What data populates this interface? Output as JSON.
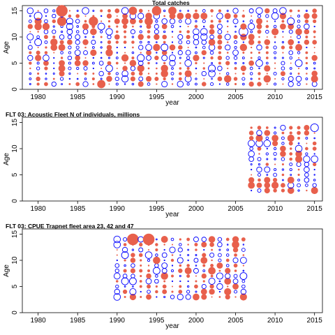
{
  "chart_data": [
    {
      "type": "scatter",
      "title": "Total catches",
      "xlabel": "year",
      "ylabel": "Age",
      "xlim": [
        1978,
        2016
      ],
      "ylim": [
        0,
        16
      ],
      "xticks": [
        1980,
        1985,
        1990,
        1995,
        2000,
        2005,
        2010,
        2015
      ],
      "yticks": [
        0,
        5,
        10,
        15
      ],
      "encoding": "bubble residuals: positive = filled red-orange, negative = open blue",
      "colors": {
        "positive": "#e8604c",
        "negative": "#0000ff"
      },
      "x_values": [
        1979,
        1980,
        1981,
        1982,
        1983,
        1984,
        1985,
        1986,
        1987,
        1988,
        1989,
        1990,
        1991,
        1992,
        1993,
        1994,
        1995,
        1996,
        1997,
        1998,
        1999,
        2000,
        2001,
        2002,
        2003,
        2004,
        2005,
        2006,
        2007,
        2008,
        2009,
        2010,
        2011,
        2012,
        2013,
        2014,
        2015
      ],
      "ages": [
        1,
        15
      ],
      "highlights": [
        {
          "x": 1983,
          "y": 15,
          "sign": "pos",
          "size": 1.0
        },
        {
          "x": 1983,
          "y": 13,
          "sign": "pos",
          "size": 0.8
        },
        {
          "x": 1980,
          "y": 14,
          "sign": "neg",
          "size": 0.7
        },
        {
          "x": 1986,
          "y": 15,
          "sign": "neg",
          "size": 0.6
        },
        {
          "x": 1987,
          "y": 13,
          "sign": "pos",
          "size": 0.8
        },
        {
          "x": 1992,
          "y": 15,
          "sign": "pos",
          "size": 0.7
        },
        {
          "x": 1995,
          "y": 15,
          "sign": "pos",
          "size": 0.8
        },
        {
          "x": 1994,
          "y": 13,
          "sign": "pos",
          "size": 0.7
        },
        {
          "x": 1997,
          "y": 15,
          "sign": "pos",
          "size": 0.7
        },
        {
          "x": 2006,
          "y": 11,
          "sign": "neg",
          "size": 0.8
        },
        {
          "x": 2010,
          "y": 11,
          "sign": "pos",
          "size": 0.6
        },
        {
          "x": 2011,
          "y": 15,
          "sign": "neg",
          "size": 0.6
        },
        {
          "x": 2001,
          "y": 11,
          "sign": "neg",
          "size": 0.6
        },
        {
          "x": 1988,
          "y": 1,
          "sign": "pos",
          "size": 0.7
        }
      ]
    },
    {
      "type": "scatter",
      "title": "FLT 03: Acoustic Fleet   N of individuals, millions",
      "xlabel": "year",
      "ylabel": "Age",
      "xlim": [
        1978,
        2016
      ],
      "ylim": [
        0,
        16
      ],
      "xticks": [
        1980,
        1985,
        1990,
        1995,
        2000,
        2005,
        2010,
        2015
      ],
      "yticks": [
        0,
        5,
        10,
        15
      ],
      "colors": {
        "positive": "#e8604c",
        "negative": "#0000ff"
      },
      "x_values": [
        2007,
        2008,
        2009,
        2010,
        2011,
        2012,
        2013,
        2014,
        2015
      ],
      "ages": [
        2,
        14
      ],
      "highlights": [
        {
          "x": 2015,
          "y": 14,
          "sign": "neg",
          "size": 0.7
        },
        {
          "x": 2015,
          "y": 8,
          "sign": "neg",
          "size": 0.6
        },
        {
          "x": 2012,
          "y": 12,
          "sign": "pos",
          "size": 0.6
        },
        {
          "x": 2011,
          "y": 10,
          "sign": "pos",
          "size": 0.5
        },
        {
          "x": 2009,
          "y": 6,
          "sign": "neg",
          "size": 0.5
        }
      ]
    },
    {
      "type": "scatter",
      "title": "FLT 03: CPUE Trapnet fleet area 23, 42 and 47",
      "xlabel": "year",
      "ylabel": "Age",
      "xlim": [
        1978,
        2016
      ],
      "ylim": [
        0,
        16
      ],
      "xticks": [
        1980,
        1985,
        1990,
        1995,
        2000,
        2005,
        2010,
        2015
      ],
      "yticks": [
        0,
        5,
        10,
        15
      ],
      "colors": {
        "positive": "#e8604c",
        "negative": "#0000ff"
      },
      "x_values": [
        1990,
        1991,
        1992,
        1993,
        1994,
        1995,
        1996,
        1997,
        1998,
        1999,
        2000,
        2001,
        2002,
        2003,
        2004,
        2005,
        2006
      ],
      "ages": [
        3,
        14
      ],
      "highlights": [
        {
          "x": 1992,
          "y": 14,
          "sign": "pos",
          "size": 1.0
        },
        {
          "x": 1994,
          "y": 14,
          "sign": "pos",
          "size": 1.0
        },
        {
          "x": 1990,
          "y": 14,
          "sign": "neg",
          "size": 0.6
        },
        {
          "x": 1990,
          "y": 3,
          "sign": "neg",
          "size": 0.6
        },
        {
          "x": 2006,
          "y": 3,
          "sign": "pos",
          "size": 0.6
        }
      ]
    }
  ]
}
